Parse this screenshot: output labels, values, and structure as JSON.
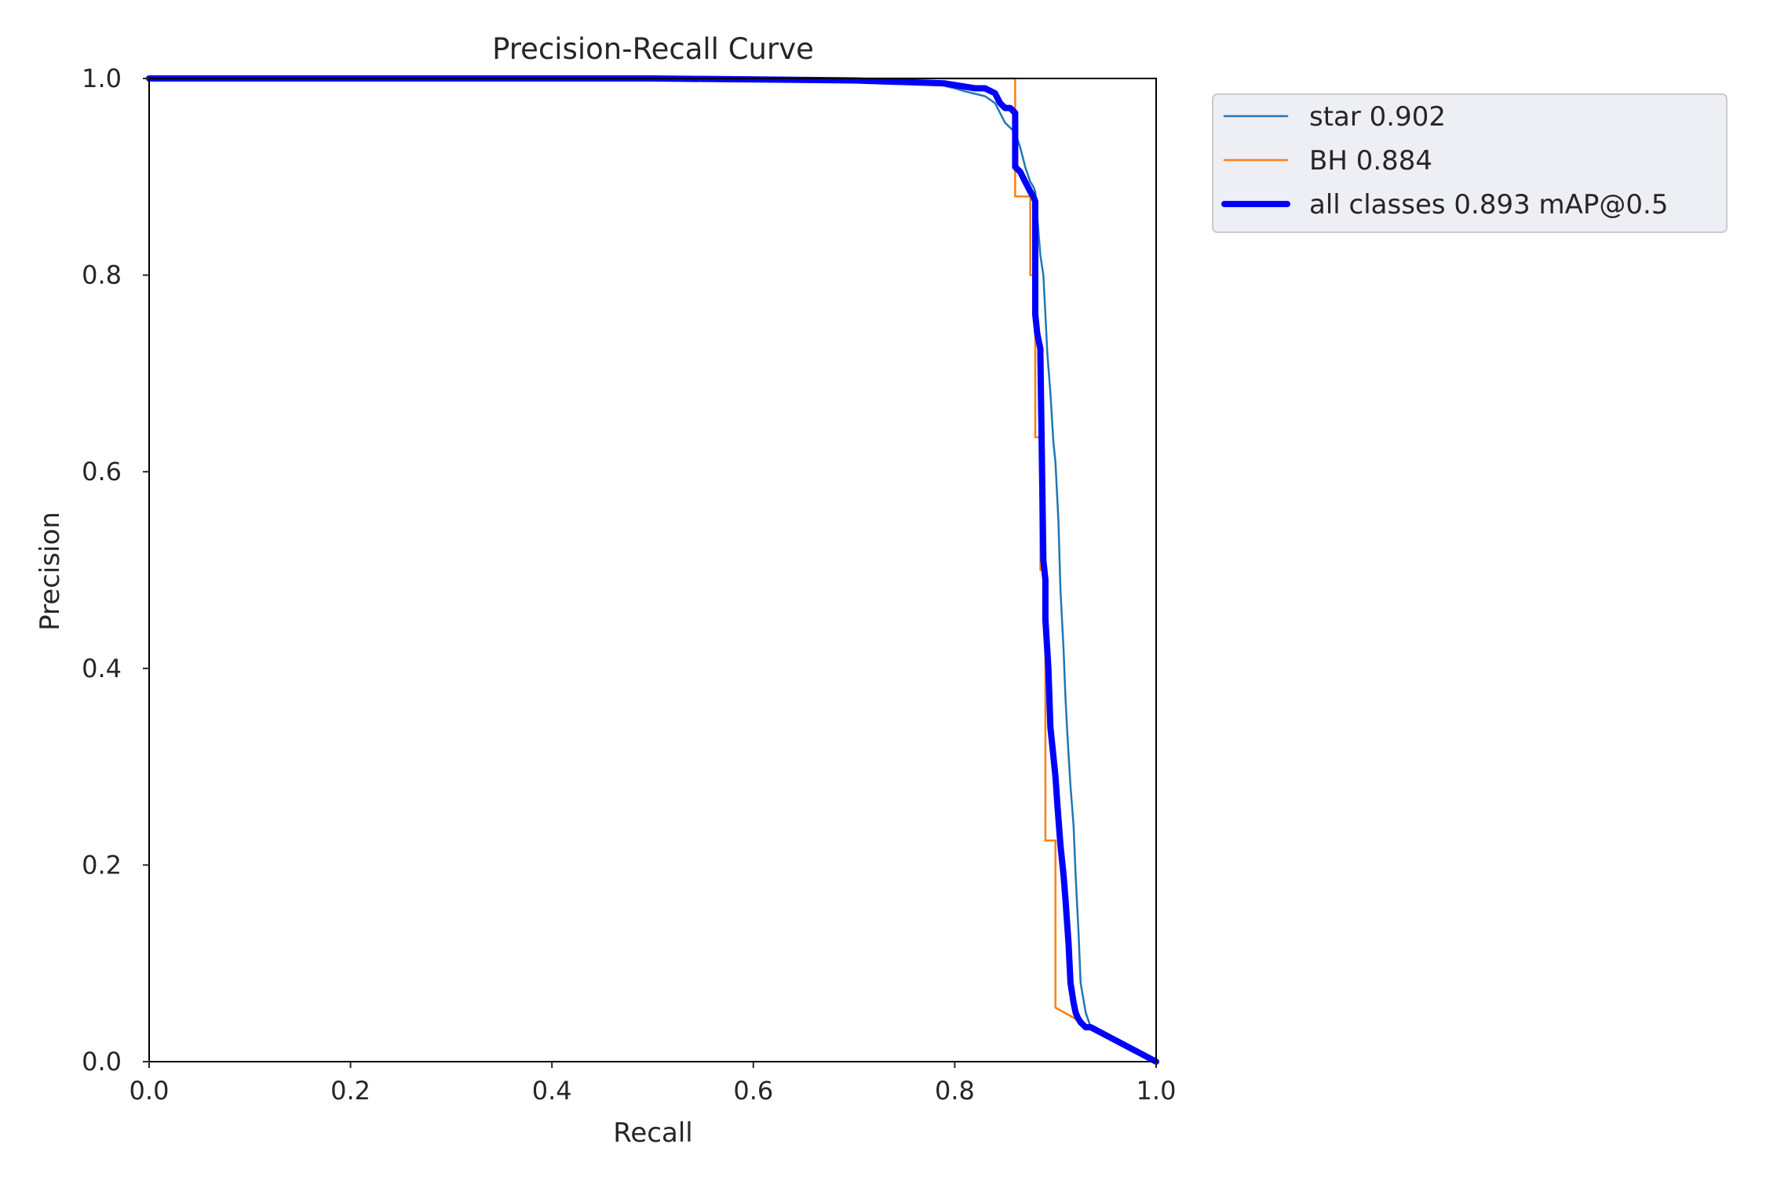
{
  "chart_data": {
    "type": "line",
    "title": "Precision-Recall Curve",
    "xlabel": "Recall",
    "ylabel": "Precision",
    "xlim": [
      0,
      1
    ],
    "ylim": [
      0,
      1
    ],
    "xticks": [
      "0.0",
      "0.2",
      "0.4",
      "0.6",
      "0.8",
      "1.0"
    ],
    "yticks": [
      "0.0",
      "0.2",
      "0.4",
      "0.6",
      "0.8",
      "1.0"
    ],
    "grid": false,
    "legend_position": "outside-top-right",
    "series": [
      {
        "name": "star 0.902",
        "color": "#1f77b4",
        "x": [
          0.0,
          0.4,
          0.6,
          0.75,
          0.78,
          0.8,
          0.81,
          0.83,
          0.84,
          0.85,
          0.86,
          0.865,
          0.87,
          0.875,
          0.878,
          0.88,
          0.885,
          0.888,
          0.89,
          0.892,
          0.895,
          0.898,
          0.9,
          0.903,
          0.905,
          0.908,
          0.91,
          0.912,
          0.915,
          0.918,
          0.92,
          0.923,
          0.925,
          0.93,
          0.935,
          1.0
        ],
        "y": [
          1.0,
          1.0,
          0.999,
          0.997,
          0.995,
          0.99,
          0.987,
          0.982,
          0.975,
          0.955,
          0.945,
          0.93,
          0.91,
          0.895,
          0.89,
          0.885,
          0.82,
          0.8,
          0.76,
          0.72,
          0.68,
          0.63,
          0.61,
          0.55,
          0.48,
          0.42,
          0.37,
          0.33,
          0.28,
          0.24,
          0.19,
          0.13,
          0.08,
          0.05,
          0.035,
          0.0
        ]
      },
      {
        "name": "BH 0.884",
        "color": "#ff7f0e",
        "x": [
          0.0,
          0.86,
          0.86,
          0.875,
          0.875,
          0.88,
          0.88,
          0.885,
          0.885,
          0.89,
          0.89,
          0.9,
          0.9,
          0.935,
          1.0
        ],
        "y": [
          1.0,
          1.0,
          0.88,
          0.88,
          0.8,
          0.8,
          0.635,
          0.635,
          0.5,
          0.5,
          0.225,
          0.225,
          0.055,
          0.035,
          0.0
        ]
      },
      {
        "name": "all classes 0.893 mAP@0.5",
        "color": "#0000ff",
        "x": [
          0.0,
          0.5,
          0.7,
          0.79,
          0.82,
          0.83,
          0.84,
          0.845,
          0.85,
          0.855,
          0.86,
          0.86,
          0.865,
          0.87,
          0.875,
          0.878,
          0.88,
          0.88,
          0.882,
          0.885,
          0.885,
          0.888,
          0.89,
          0.89,
          0.893,
          0.895,
          0.897,
          0.9,
          0.902,
          0.905,
          0.908,
          0.91,
          0.913,
          0.915,
          0.918,
          0.92,
          0.922,
          0.925,
          0.93,
          0.935,
          1.0
        ],
        "y": [
          1.0,
          1.0,
          0.998,
          0.995,
          0.99,
          0.99,
          0.985,
          0.975,
          0.97,
          0.97,
          0.965,
          0.91,
          0.905,
          0.895,
          0.885,
          0.88,
          0.875,
          0.76,
          0.74,
          0.725,
          0.72,
          0.51,
          0.49,
          0.45,
          0.4,
          0.34,
          0.32,
          0.29,
          0.26,
          0.22,
          0.19,
          0.165,
          0.12,
          0.08,
          0.06,
          0.05,
          0.045,
          0.04,
          0.035,
          0.035,
          0.0
        ]
      }
    ]
  }
}
